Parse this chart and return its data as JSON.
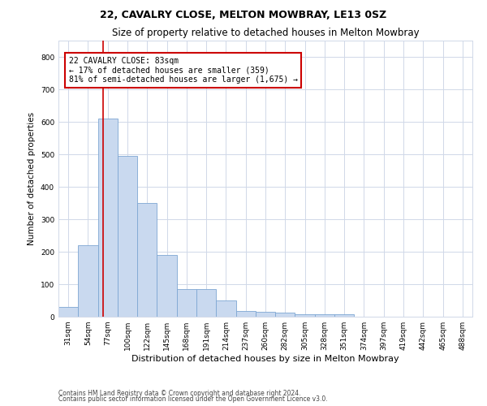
{
  "title1": "22, CAVALRY CLOSE, MELTON MOWBRAY, LE13 0SZ",
  "title2": "Size of property relative to detached houses in Melton Mowbray",
  "xlabel": "Distribution of detached houses by size in Melton Mowbray",
  "ylabel": "Number of detached properties",
  "categories": [
    "31sqm",
    "54sqm",
    "77sqm",
    "100sqm",
    "122sqm",
    "145sqm",
    "168sqm",
    "191sqm",
    "214sqm",
    "237sqm",
    "260sqm",
    "282sqm",
    "305sqm",
    "328sqm",
    "351sqm",
    "374sqm",
    "397sqm",
    "419sqm",
    "442sqm",
    "465sqm",
    "488sqm"
  ],
  "values": [
    30,
    220,
    610,
    495,
    350,
    190,
    85,
    85,
    50,
    18,
    15,
    13,
    8,
    8,
    8,
    0,
    0,
    0,
    0,
    0,
    0
  ],
  "bar_color": "#c9d9ef",
  "bar_edge_color": "#7ea6d3",
  "annotation_text": "22 CAVALRY CLOSE: 83sqm\n← 17% of detached houses are smaller (359)\n81% of semi-detached houses are larger (1,675) →",
  "annotation_box_color": "#ffffff",
  "annotation_box_edge_color": "#cc0000",
  "ylim": [
    0,
    850
  ],
  "yticks": [
    0,
    100,
    200,
    300,
    400,
    500,
    600,
    700,
    800
  ],
  "footer1": "Contains HM Land Registry data © Crown copyright and database right 2024.",
  "footer2": "Contains public sector information licensed under the Open Government Licence v3.0.",
  "bg_color": "#ffffff",
  "grid_color": "#d0d8e8",
  "title1_fontsize": 9,
  "title2_fontsize": 8.5,
  "ylabel_fontsize": 7.5,
  "xlabel_fontsize": 8,
  "tick_fontsize": 6.5,
  "annotation_fontsize": 7,
  "footer_fontsize": 5.5
}
